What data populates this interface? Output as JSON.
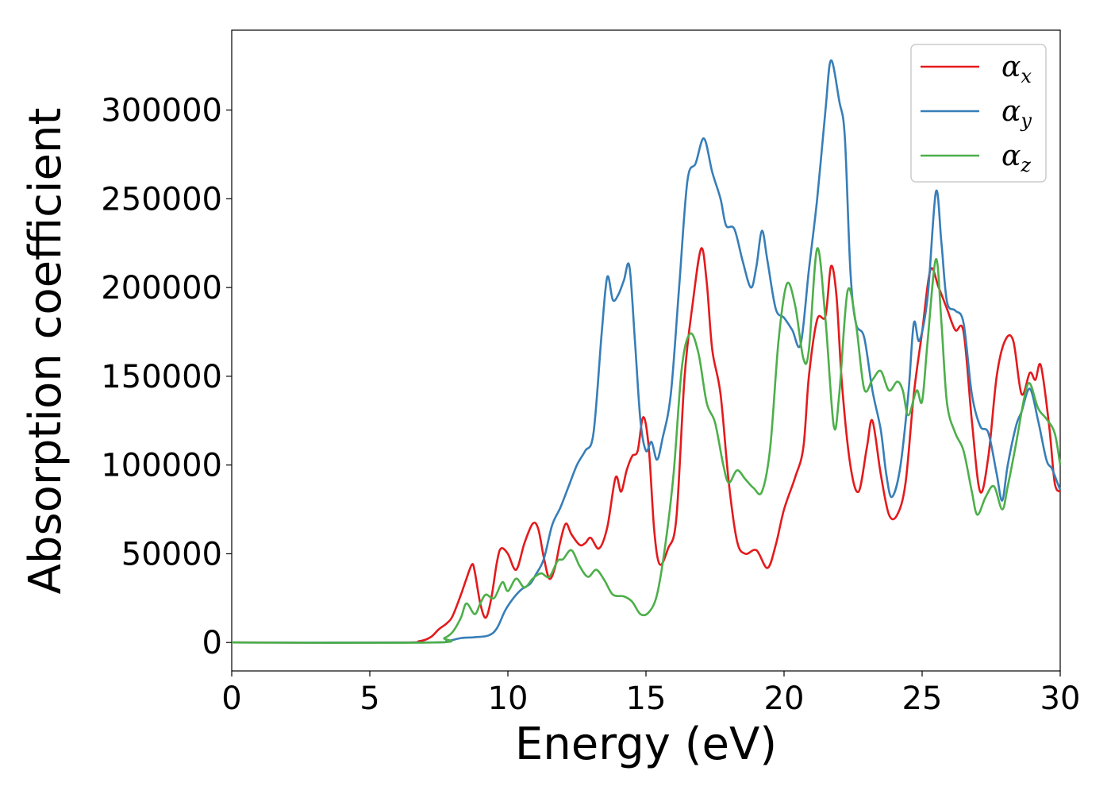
{
  "chart_data": {
    "type": "line",
    "title": "",
    "xlabel": "Energy (eV)",
    "ylabel": "Absorption coefficient",
    "xlim": [
      0,
      30
    ],
    "ylim": [
      -16000,
      345000
    ],
    "xticks": [
      0,
      5,
      10,
      15,
      20,
      25,
      30
    ],
    "yticks": [
      0,
      50000,
      100000,
      150000,
      200000,
      250000,
      300000
    ],
    "grid": false,
    "legend_position": "top-right",
    "series": [
      {
        "name": "α",
        "subscript": "x",
        "color": "#e41a1c",
        "points": [
          [
            0,
            0
          ],
          [
            6,
            0
          ],
          [
            6.8,
            800
          ],
          [
            7.2,
            3000
          ],
          [
            7.5,
            7500
          ],
          [
            7.8,
            11000
          ],
          [
            8.0,
            15000
          ],
          [
            8.3,
            27000
          ],
          [
            8.5,
            36000
          ],
          [
            8.7,
            44000
          ],
          [
            8.8,
            40000
          ],
          [
            9.0,
            22000
          ],
          [
            9.2,
            14000
          ],
          [
            9.4,
            25000
          ],
          [
            9.6,
            45000
          ],
          [
            9.75,
            53000
          ],
          [
            10.0,
            50000
          ],
          [
            10.3,
            41000
          ],
          [
            10.6,
            56000
          ],
          [
            10.9,
            67000
          ],
          [
            11.1,
            64000
          ],
          [
            11.3,
            48000
          ],
          [
            11.5,
            36000
          ],
          [
            11.7,
            42000
          ],
          [
            11.9,
            57000
          ],
          [
            12.1,
            67000
          ],
          [
            12.3,
            61000
          ],
          [
            12.6,
            55000
          ],
          [
            12.8,
            56000
          ],
          [
            13.0,
            59000
          ],
          [
            13.3,
            53000
          ],
          [
            13.6,
            65000
          ],
          [
            13.9,
            93000
          ],
          [
            14.1,
            85000
          ],
          [
            14.3,
            97000
          ],
          [
            14.5,
            105000
          ],
          [
            14.7,
            108000
          ],
          [
            14.9,
            127000
          ],
          [
            15.1,
            110000
          ],
          [
            15.3,
            63000
          ],
          [
            15.5,
            44000
          ],
          [
            15.8,
            53000
          ],
          [
            16.1,
            70000
          ],
          [
            16.4,
            150000
          ],
          [
            16.7,
            192000
          ],
          [
            17.0,
            222000
          ],
          [
            17.2,
            203000
          ],
          [
            17.4,
            165000
          ],
          [
            17.7,
            140000
          ],
          [
            18.0,
            90000
          ],
          [
            18.3,
            57000
          ],
          [
            18.6,
            50000
          ],
          [
            19.0,
            52000
          ],
          [
            19.4,
            42000
          ],
          [
            19.7,
            55000
          ],
          [
            20.0,
            75000
          ],
          [
            20.4,
            93000
          ],
          [
            20.7,
            110000
          ],
          [
            20.9,
            150000
          ],
          [
            21.2,
            182000
          ],
          [
            21.5,
            184000
          ],
          [
            21.7,
            212000
          ],
          [
            21.9,
            195000
          ],
          [
            22.1,
            145000
          ],
          [
            22.4,
            100000
          ],
          [
            22.7,
            85000
          ],
          [
            23.0,
            110000
          ],
          [
            23.2,
            125000
          ],
          [
            23.5,
            95000
          ],
          [
            23.8,
            72000
          ],
          [
            24.1,
            72000
          ],
          [
            24.4,
            90000
          ],
          [
            24.7,
            140000
          ],
          [
            25.0,
            175000
          ],
          [
            25.3,
            210000
          ],
          [
            25.6,
            200000
          ],
          [
            25.9,
            188000
          ],
          [
            26.2,
            176000
          ],
          [
            26.5,
            175000
          ],
          [
            26.8,
            125000
          ],
          [
            27.1,
            85000
          ],
          [
            27.4,
            105000
          ],
          [
            27.7,
            150000
          ],
          [
            28.0,
            170000
          ],
          [
            28.3,
            170000
          ],
          [
            28.6,
            140000
          ],
          [
            28.9,
            152000
          ],
          [
            29.1,
            148000
          ],
          [
            29.3,
            156000
          ],
          [
            29.6,
            122000
          ],
          [
            29.8,
            90000
          ],
          [
            30,
            85000
          ]
        ]
      },
      {
        "name": "α",
        "subscript": "y",
        "color": "#377eb8",
        "points": [
          [
            0,
            0
          ],
          [
            7,
            0
          ],
          [
            7.8,
            800
          ],
          [
            8.3,
            2500
          ],
          [
            8.8,
            3000
          ],
          [
            9.3,
            4000
          ],
          [
            9.6,
            8000
          ],
          [
            9.9,
            18000
          ],
          [
            10.2,
            25000
          ],
          [
            10.5,
            30000
          ],
          [
            10.8,
            33000
          ],
          [
            11.0,
            38000
          ],
          [
            11.3,
            47000
          ],
          [
            11.6,
            66000
          ],
          [
            11.9,
            76000
          ],
          [
            12.2,
            88000
          ],
          [
            12.5,
            100000
          ],
          [
            12.8,
            108000
          ],
          [
            13.1,
            118000
          ],
          [
            13.4,
            175000
          ],
          [
            13.6,
            206000
          ],
          [
            13.8,
            193000
          ],
          [
            14.0,
            196000
          ],
          [
            14.2,
            204000
          ],
          [
            14.4,
            212000
          ],
          [
            14.6,
            170000
          ],
          [
            14.8,
            125000
          ],
          [
            15.0,
            108000
          ],
          [
            15.2,
            113000
          ],
          [
            15.4,
            103000
          ],
          [
            15.6,
            115000
          ],
          [
            15.9,
            140000
          ],
          [
            16.2,
            200000
          ],
          [
            16.5,
            260000
          ],
          [
            16.8,
            270000
          ],
          [
            17.1,
            284000
          ],
          [
            17.4,
            265000
          ],
          [
            17.7,
            250000
          ],
          [
            17.9,
            235000
          ],
          [
            18.2,
            233000
          ],
          [
            18.5,
            215000
          ],
          [
            18.8,
            200000
          ],
          [
            19.0,
            212000
          ],
          [
            19.2,
            232000
          ],
          [
            19.4,
            215000
          ],
          [
            19.7,
            188000
          ],
          [
            20.0,
            183000
          ],
          [
            20.3,
            176000
          ],
          [
            20.6,
            168000
          ],
          [
            20.9,
            210000
          ],
          [
            21.2,
            250000
          ],
          [
            21.5,
            300000
          ],
          [
            21.7,
            328000
          ],
          [
            22.0,
            305000
          ],
          [
            22.2,
            285000
          ],
          [
            22.4,
            210000
          ],
          [
            22.6,
            180000
          ],
          [
            22.9,
            172000
          ],
          [
            23.2,
            142000
          ],
          [
            23.5,
            120000
          ],
          [
            23.7,
            95000
          ],
          [
            23.9,
            82000
          ],
          [
            24.2,
            98000
          ],
          [
            24.5,
            140000
          ],
          [
            24.7,
            180000
          ],
          [
            24.9,
            170000
          ],
          [
            25.2,
            195000
          ],
          [
            25.5,
            254000
          ],
          [
            25.7,
            225000
          ],
          [
            25.9,
            192000
          ],
          [
            26.2,
            187000
          ],
          [
            26.5,
            180000
          ],
          [
            26.8,
            140000
          ],
          [
            27.1,
            122000
          ],
          [
            27.4,
            118000
          ],
          [
            27.7,
            95000
          ],
          [
            27.9,
            80000
          ],
          [
            28.1,
            100000
          ],
          [
            28.4,
            122000
          ],
          [
            28.6,
            130000
          ],
          [
            28.9,
            143000
          ],
          [
            29.2,
            125000
          ],
          [
            29.5,
            103000
          ],
          [
            29.7,
            98000
          ],
          [
            29.9,
            90000
          ],
          [
            30,
            86000
          ]
        ]
      },
      {
        "name": "α",
        "subscript": "z",
        "color": "#4daf4a",
        "points": [
          [
            0,
            0
          ],
          [
            7.3,
            0
          ],
          [
            7.7,
            2500
          ],
          [
            8.0,
            6000
          ],
          [
            8.3,
            14000
          ],
          [
            8.5,
            22000
          ],
          [
            8.8,
            16000
          ],
          [
            9.0,
            22000
          ],
          [
            9.2,
            27000
          ],
          [
            9.5,
            25000
          ],
          [
            9.8,
            34000
          ],
          [
            10.0,
            29000
          ],
          [
            10.3,
            36000
          ],
          [
            10.6,
            31000
          ],
          [
            10.9,
            36000
          ],
          [
            11.2,
            39000
          ],
          [
            11.5,
            37000
          ],
          [
            11.8,
            46000
          ],
          [
            12.0,
            47000
          ],
          [
            12.3,
            52000
          ],
          [
            12.6,
            43000
          ],
          [
            12.9,
            37000
          ],
          [
            13.2,
            41000
          ],
          [
            13.5,
            35000
          ],
          [
            13.8,
            27000
          ],
          [
            14.2,
            26000
          ],
          [
            14.5,
            23000
          ],
          [
            14.8,
            16000
          ],
          [
            15.1,
            17000
          ],
          [
            15.4,
            27000
          ],
          [
            15.7,
            55000
          ],
          [
            16.0,
            95000
          ],
          [
            16.3,
            155000
          ],
          [
            16.6,
            174000
          ],
          [
            16.9,
            163000
          ],
          [
            17.2,
            135000
          ],
          [
            17.5,
            124000
          ],
          [
            17.8,
            100000
          ],
          [
            18.0,
            90000
          ],
          [
            18.3,
            97000
          ],
          [
            18.6,
            92000
          ],
          [
            18.9,
            87000
          ],
          [
            19.2,
            85000
          ],
          [
            19.5,
            110000
          ],
          [
            19.8,
            170000
          ],
          [
            20.1,
            202000
          ],
          [
            20.4,
            190000
          ],
          [
            20.7,
            160000
          ],
          [
            20.9,
            165000
          ],
          [
            21.2,
            222000
          ],
          [
            21.5,
            182000
          ],
          [
            21.8,
            122000
          ],
          [
            22.0,
            140000
          ],
          [
            22.3,
            198000
          ],
          [
            22.6,
            180000
          ],
          [
            22.9,
            143000
          ],
          [
            23.2,
            148000
          ],
          [
            23.5,
            153000
          ],
          [
            23.8,
            142000
          ],
          [
            24.1,
            147000
          ],
          [
            24.3,
            142000
          ],
          [
            24.5,
            128000
          ],
          [
            24.8,
            142000
          ],
          [
            25.0,
            136000
          ],
          [
            25.2,
            170000
          ],
          [
            25.5,
            216000
          ],
          [
            25.7,
            180000
          ],
          [
            25.9,
            135000
          ],
          [
            26.2,
            118000
          ],
          [
            26.5,
            108000
          ],
          [
            26.8,
            85000
          ],
          [
            27.0,
            72000
          ],
          [
            27.3,
            82000
          ],
          [
            27.6,
            88000
          ],
          [
            27.9,
            75000
          ],
          [
            28.1,
            88000
          ],
          [
            28.4,
            112000
          ],
          [
            28.7,
            138000
          ],
          [
            28.9,
            146000
          ],
          [
            29.2,
            132000
          ],
          [
            29.5,
            126000
          ],
          [
            29.8,
            118000
          ],
          [
            30,
            100000
          ]
        ]
      }
    ]
  }
}
